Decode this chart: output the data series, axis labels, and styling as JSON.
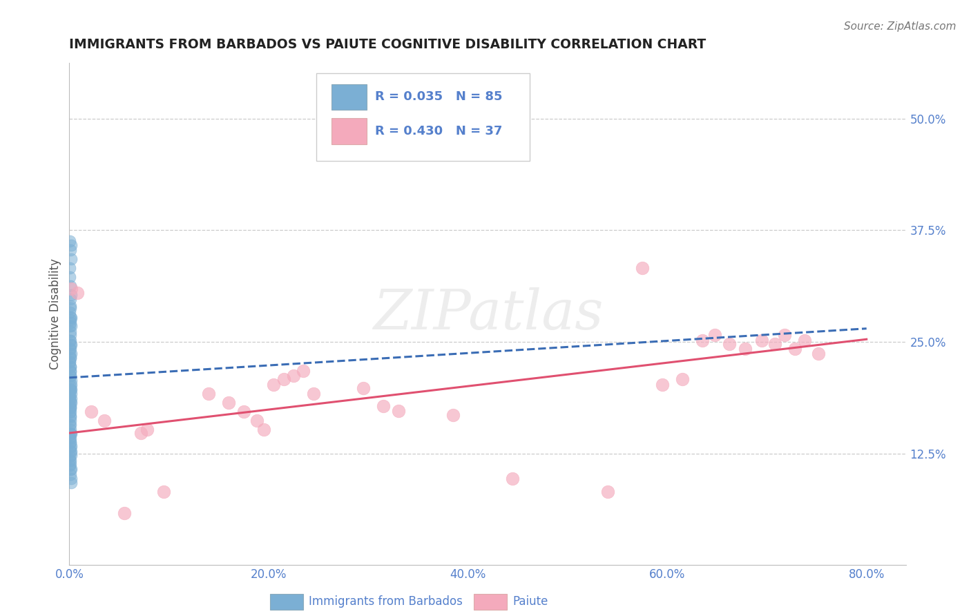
{
  "title": "IMMIGRANTS FROM BARBADOS VS PAIUTE COGNITIVE DISABILITY CORRELATION CHART",
  "source": "Source: ZipAtlas.com",
  "ylabel": "Cognitive Disability",
  "xlim": [
    0.0,
    0.84
  ],
  "ylim": [
    0.0,
    0.5625
  ],
  "xticks": [
    0.0,
    0.2,
    0.4,
    0.6,
    0.8
  ],
  "xticklabels": [
    "0.0%",
    "20.0%",
    "40.0%",
    "60.0%",
    "80.0%"
  ],
  "yticks": [
    0.125,
    0.25,
    0.375,
    0.5
  ],
  "yticklabels": [
    "12.5%",
    "25.0%",
    "37.5%",
    "50.0%"
  ],
  "legend_label1": "R = 0.035   N = 85",
  "legend_label2": "R = 0.430   N = 37",
  "legend_xlabel1": "Immigrants from Barbados",
  "legend_xlabel2": "Paiute",
  "blue_scatter_color": "#7BAFD4",
  "pink_scatter_color": "#F4AABC",
  "blue_line_color": "#3B6DB5",
  "pink_line_color": "#E05070",
  "grid_color": "#CCCCCC",
  "tick_color": "#5580CC",
  "ylabel_color": "#555555",
  "watermark": "ZIPatlas",
  "title_fontsize": 13.5,
  "source_fontsize": 11,
  "tick_fontsize": 12,
  "blue_trend_x": [
    0.0,
    0.8
  ],
  "blue_trend_y": [
    0.21,
    0.265
  ],
  "pink_trend_x": [
    0.0,
    0.8
  ],
  "pink_trend_y": [
    0.148,
    0.253
  ],
  "blue_scatter_x": [
    0.0008,
    0.0012,
    0.0015,
    0.0009,
    0.0011,
    0.0018,
    0.0013,
    0.0007,
    0.001,
    0.0006,
    0.0014,
    0.0009,
    0.0011,
    0.0016,
    0.0008,
    0.0013,
    0.0007,
    0.0019,
    0.0015,
    0.001,
    0.0006,
    0.0014,
    0.0009,
    0.0007,
    0.0011,
    0.0016,
    0.0008,
    0.0012,
    0.0014,
    0.0018,
    0.0006,
    0.001,
    0.0015,
    0.0011,
    0.0007,
    0.0014,
    0.0009,
    0.0006,
    0.0019,
    0.0011,
    0.0015,
    0.0007,
    0.001,
    0.0014,
    0.0008,
    0.0012,
    0.0006,
    0.0016,
    0.0009,
    0.0007,
    0.0011,
    0.0015,
    0.0018,
    0.001,
    0.0006,
    0.0012,
    0.0015,
    0.0007,
    0.001,
    0.0014,
    0.0006,
    0.0011,
    0.0019,
    0.001,
    0.0015,
    0.0007,
    0.0012,
    0.0015,
    0.0007,
    0.001,
    0.0006,
    0.0015,
    0.0009,
    0.0006,
    0.001,
    0.0014,
    0.0009,
    0.0006,
    0.0015,
    0.001,
    0.0019,
    0.0006,
    0.0011,
    0.0014,
    0.0009
  ],
  "blue_scatter_y": [
    0.29,
    0.275,
    0.268,
    0.258,
    0.252,
    0.247,
    0.242,
    0.237,
    0.232,
    0.228,
    0.298,
    0.278,
    0.212,
    0.207,
    0.201,
    0.197,
    0.192,
    0.187,
    0.182,
    0.176,
    0.171,
    0.166,
    0.162,
    0.157,
    0.152,
    0.147,
    0.142,
    0.137,
    0.132,
    0.127,
    0.122,
    0.117,
    0.303,
    0.313,
    0.323,
    0.222,
    0.217,
    0.333,
    0.343,
    0.353,
    0.358,
    0.363,
    0.147,
    0.157,
    0.167,
    0.177,
    0.187,
    0.197,
    0.107,
    0.112,
    0.102,
    0.097,
    0.092,
    0.262,
    0.268,
    0.272,
    0.277,
    0.283,
    0.288,
    0.148,
    0.143,
    0.138,
    0.133,
    0.128,
    0.123,
    0.118,
    0.113,
    0.108,
    0.252,
    0.247,
    0.242,
    0.237,
    0.232,
    0.228,
    0.222,
    0.218,
    0.212,
    0.208,
    0.202,
    0.197,
    0.192,
    0.188,
    0.183,
    0.178,
    0.172
  ],
  "pink_scatter_x": [
    0.002,
    0.008,
    0.022,
    0.035,
    0.055,
    0.072,
    0.078,
    0.095,
    0.14,
    0.16,
    0.175,
    0.188,
    0.195,
    0.205,
    0.215,
    0.225,
    0.235,
    0.245,
    0.295,
    0.315,
    0.33,
    0.385,
    0.445,
    0.54,
    0.575,
    0.595,
    0.615,
    0.635,
    0.648,
    0.662,
    0.678,
    0.695,
    0.708,
    0.718,
    0.728,
    0.738,
    0.752
  ],
  "pink_scatter_y": [
    0.31,
    0.305,
    0.172,
    0.162,
    0.058,
    0.148,
    0.152,
    0.082,
    0.192,
    0.182,
    0.172,
    0.162,
    0.152,
    0.202,
    0.208,
    0.212,
    0.218,
    0.192,
    0.198,
    0.178,
    0.173,
    0.168,
    0.097,
    0.082,
    0.333,
    0.202,
    0.208,
    0.252,
    0.258,
    0.248,
    0.242,
    0.252,
    0.248,
    0.258,
    0.242,
    0.252,
    0.237
  ]
}
